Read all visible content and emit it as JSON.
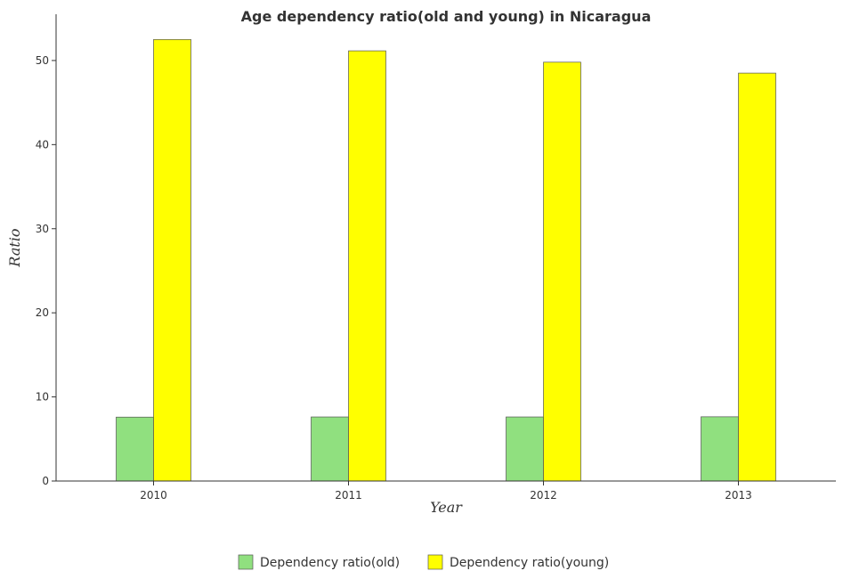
{
  "chart_data": {
    "type": "bar",
    "title": "Age dependency ratio(old and young) in Nicaragua",
    "xlabel": "Year",
    "ylabel": "Ratio",
    "categories": [
      "2010",
      "2011",
      "2012",
      "2013"
    ],
    "series": [
      {
        "name": "Dependency ratio(old)",
        "values": [
          7.6,
          7.62,
          7.62,
          7.64
        ],
        "color": "#90e07f"
      },
      {
        "name": "Dependency ratio(young)",
        "values": [
          52.5,
          51.15,
          49.8,
          48.5
        ],
        "color": "#ffff00"
      }
    ],
    "ylim": [
      0,
      55.5
    ],
    "yticks": [
      0,
      10,
      20,
      30,
      40,
      50
    ],
    "grid": false,
    "legend": "bottom-center"
  }
}
